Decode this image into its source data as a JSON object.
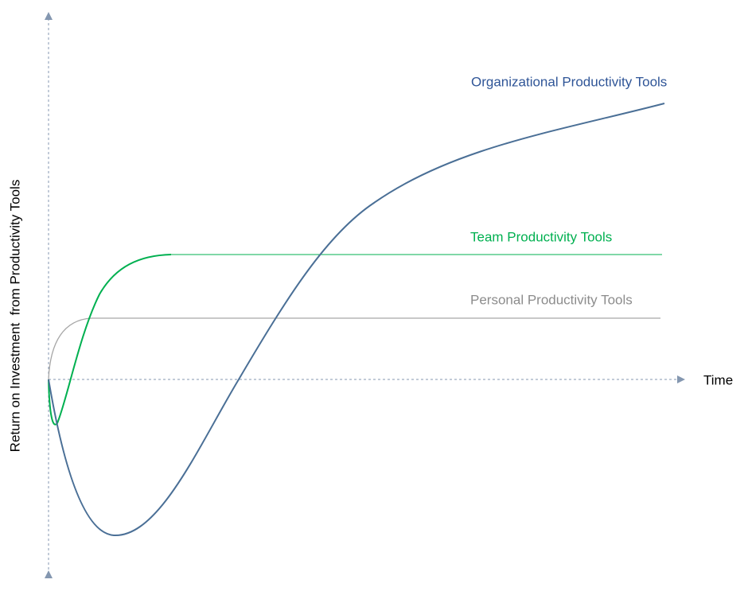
{
  "axes": {
    "x_label": "Time",
    "y_label": "Return on Investment  from Productivity Tools"
  },
  "curves": [
    {
      "label": "Organizational Productivity Tools"
    },
    {
      "label": "Team Productivity Tools"
    },
    {
      "label": "Personal Productivity Tools"
    }
  ]
}
